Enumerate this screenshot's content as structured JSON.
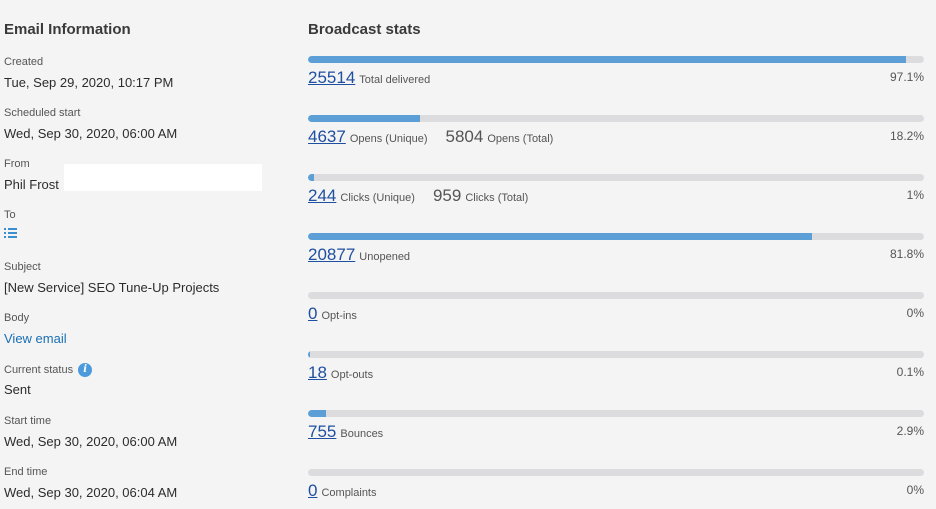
{
  "email_info": {
    "title": "Email Information",
    "created": {
      "label": "Created",
      "value": "Tue, Sep 29, 2020, 10:17 PM"
    },
    "scheduled_start": {
      "label": "Scheduled start",
      "value": "Wed, Sep 30, 2020, 06:00 AM"
    },
    "from": {
      "label": "From",
      "value": "Phil Frost"
    },
    "to": {
      "label": "To",
      "icon": "list-icon"
    },
    "subject": {
      "label": "Subject",
      "value": "[New Service] SEO Tune-Up Projects"
    },
    "body": {
      "label": "Body",
      "link": "View email"
    },
    "current_status": {
      "label": "Current status",
      "value": "Sent",
      "icon": "info-icon"
    },
    "start_time": {
      "label": "Start time",
      "value": "Wed, Sep 30, 2020, 06:00 AM"
    },
    "end_time": {
      "label": "End time",
      "value": "Wed, Sep 30, 2020, 06:04 AM"
    }
  },
  "broadcast_stats": {
    "title": "Broadcast stats",
    "accent_color": "#5b9fd6",
    "items": [
      {
        "value": "25514",
        "label": "Total delivered",
        "percent_text": "97.1%",
        "fill": 0.971
      },
      {
        "value": "4637",
        "label": "Opens (Unique)",
        "secondary_value": "5804",
        "secondary_label": "Opens (Total)",
        "percent_text": "18.2%",
        "fill": 0.182
      },
      {
        "value": "244",
        "label": "Clicks (Unique)",
        "secondary_value": "959",
        "secondary_label": "Clicks (Total)",
        "percent_text": "1%",
        "fill": 0.01
      },
      {
        "value": "20877",
        "label": "Unopened",
        "percent_text": "81.8%",
        "fill": 0.818
      },
      {
        "value": "0",
        "label": "Opt-ins",
        "percent_text": "0%",
        "fill": 0
      },
      {
        "value": "18",
        "label": "Opt-outs",
        "percent_text": "0.1%",
        "fill": 0.001
      },
      {
        "value": "755",
        "label": "Bounces",
        "percent_text": "2.9%",
        "fill": 0.029
      },
      {
        "value": "0",
        "label": "Complaints",
        "percent_text": "0%",
        "fill": 0
      }
    ]
  }
}
